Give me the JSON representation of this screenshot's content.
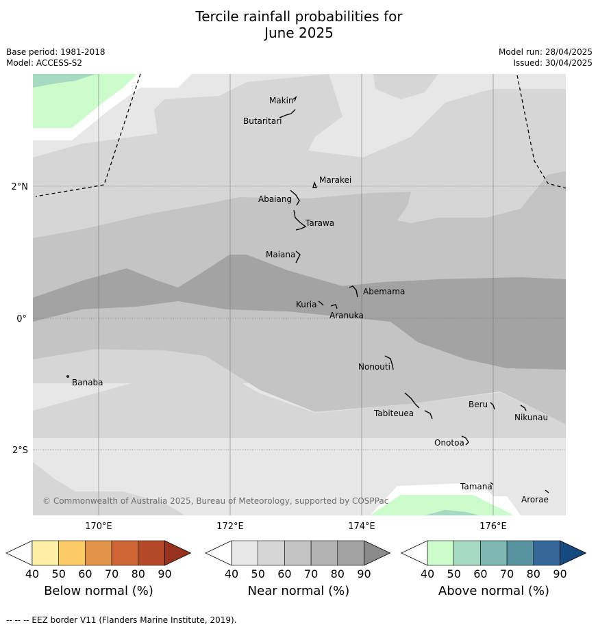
{
  "header": {
    "title_line1": "Tercile rainfall probabilities for",
    "title_line2": "June 2025",
    "base_period": "Base period: 1981-2018",
    "model": "Model: ACCESS-S2",
    "model_run": "Model run: 28/04/2025",
    "issued": "Issued: 30/04/2025"
  },
  "map": {
    "lat_labels": [
      "2°N",
      "0°",
      "2°S"
    ],
    "lon_labels": [
      "170°E",
      "172°E",
      "174°E",
      "176°E"
    ],
    "places": [
      "Makin",
      "Butaritari",
      "Marakei",
      "Abaiang",
      "Tarawa",
      "Maiana",
      "Abemama",
      "Kuria",
      "Aranuka",
      "Nonouti",
      "Banaba",
      "Beru",
      "Nikunau",
      "Tabiteuea",
      "Onotoa",
      "Tamana",
      "Arorae"
    ],
    "copyright": "© Commonwealth of Australia 2025, Bureau of Meteorology, supported by COSPPac"
  },
  "legend": {
    "ticks": [
      "40",
      "50",
      "60",
      "70",
      "80",
      "90"
    ],
    "below": {
      "title": "Below normal (%)",
      "colors": [
        "#ffffff",
        "#fff0a8",
        "#fdcb65",
        "#e29548",
        "#d06636",
        "#b24a28",
        "#96321e"
      ]
    },
    "near": {
      "title": "Near normal (%)",
      "colors": [
        "#ffffff",
        "#e7e7e7",
        "#d6d6d6",
        "#c4c4c4",
        "#b3b3b3",
        "#a3a3a3",
        "#8a8a8a"
      ]
    },
    "above": {
      "title": "Above normal (%)",
      "colors": [
        "#ffffff",
        "#ccfccc",
        "#a6d9c2",
        "#7fb6b1",
        "#5a93a0",
        "#356898",
        "#154a80"
      ]
    }
  },
  "footer": {
    "eez": "--  --  -- EEZ border V11 (Flanders Marine Institute, 2019)."
  }
}
